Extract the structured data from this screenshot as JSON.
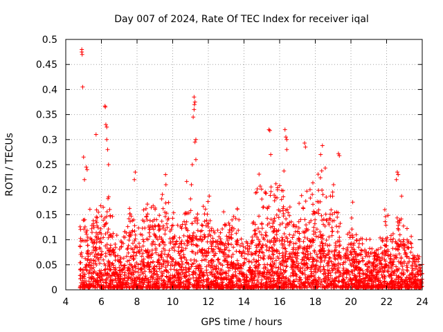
{
  "chart_data": {
    "type": "scatter",
    "title": "Day 007 of 2024, Rate Of TEC Index for receiver iqal",
    "xlabel": "GPS time / hours",
    "ylabel": "ROTI / TECUs",
    "xlim": [
      4,
      24
    ],
    "ylim": [
      0,
      0.5
    ],
    "xticks": [
      4,
      6,
      8,
      10,
      12,
      14,
      16,
      18,
      20,
      22,
      24
    ],
    "xtick_labels": [
      "4",
      "6",
      "8",
      "10",
      "12",
      "14",
      "16",
      "18",
      "20",
      "22",
      "24"
    ],
    "yticks": [
      0,
      0.05,
      0.1,
      0.15,
      0.2,
      0.25,
      0.3,
      0.35,
      0.4,
      0.45,
      0.5
    ],
    "ytick_labels": [
      "0",
      "0.05",
      "0.1",
      "0.15",
      "0.2",
      "0.25",
      "0.3",
      "0.35",
      "0.4",
      "0.45",
      "0.5"
    ],
    "grid": true,
    "marker": "+",
    "color": "#ff0000",
    "notable_points": [
      {
        "x": 4.9,
        "y": 0.48
      },
      {
        "x": 4.9,
        "y": 0.475
      },
      {
        "x": 4.92,
        "y": 0.47
      },
      {
        "x": 4.95,
        "y": 0.405
      },
      {
        "x": 5.0,
        "y": 0.265
      },
      {
        "x": 5.05,
        "y": 0.22
      },
      {
        "x": 5.15,
        "y": 0.245
      },
      {
        "x": 5.2,
        "y": 0.24
      },
      {
        "x": 5.7,
        "y": 0.31
      },
      {
        "x": 6.2,
        "y": 0.367
      },
      {
        "x": 6.22,
        "y": 0.365
      },
      {
        "x": 6.25,
        "y": 0.33
      },
      {
        "x": 6.3,
        "y": 0.325
      },
      {
        "x": 6.3,
        "y": 0.3
      },
      {
        "x": 6.35,
        "y": 0.28
      },
      {
        "x": 6.4,
        "y": 0.25
      },
      {
        "x": 7.9,
        "y": 0.235
      },
      {
        "x": 7.85,
        "y": 0.22
      },
      {
        "x": 9.6,
        "y": 0.23
      },
      {
        "x": 9.62,
        "y": 0.21
      },
      {
        "x": 11.2,
        "y": 0.385
      },
      {
        "x": 11.25,
        "y": 0.375
      },
      {
        "x": 11.22,
        "y": 0.37
      },
      {
        "x": 11.2,
        "y": 0.36
      },
      {
        "x": 11.15,
        "y": 0.345
      },
      {
        "x": 11.3,
        "y": 0.3
      },
      {
        "x": 11.25,
        "y": 0.295
      },
      {
        "x": 11.3,
        "y": 0.26
      },
      {
        "x": 11.1,
        "y": 0.25
      },
      {
        "x": 11.05,
        "y": 0.21
      },
      {
        "x": 15.4,
        "y": 0.32
      },
      {
        "x": 15.45,
        "y": 0.318
      },
      {
        "x": 15.5,
        "y": 0.27
      },
      {
        "x": 16.3,
        "y": 0.32
      },
      {
        "x": 16.35,
        "y": 0.305
      },
      {
        "x": 16.4,
        "y": 0.3
      },
      {
        "x": 16.4,
        "y": 0.28
      },
      {
        "x": 17.4,
        "y": 0.293
      },
      {
        "x": 17.45,
        "y": 0.285
      },
      {
        "x": 18.4,
        "y": 0.288
      },
      {
        "x": 18.3,
        "y": 0.27
      },
      {
        "x": 19.3,
        "y": 0.272
      },
      {
        "x": 19.35,
        "y": 0.268
      },
      {
        "x": 22.6,
        "y": 0.235
      },
      {
        "x": 22.65,
        "y": 0.23
      },
      {
        "x": 22.55,
        "y": 0.22
      },
      {
        "x": 21.9,
        "y": 0.16
      },
      {
        "x": 20.1,
        "y": 0.175
      }
    ],
    "density_profile": [
      {
        "x": 4.8,
        "max": 0.14
      },
      {
        "x": 5.2,
        "max": 0.15
      },
      {
        "x": 5.6,
        "max": 0.18
      },
      {
        "x": 6.0,
        "max": 0.21
      },
      {
        "x": 6.4,
        "max": 0.22
      },
      {
        "x": 6.8,
        "max": 0.1
      },
      {
        "x": 7.2,
        "max": 0.12
      },
      {
        "x": 7.6,
        "max": 0.18
      },
      {
        "x": 8.0,
        "max": 0.12
      },
      {
        "x": 8.4,
        "max": 0.17
      },
      {
        "x": 8.8,
        "max": 0.2
      },
      {
        "x": 9.2,
        "max": 0.18
      },
      {
        "x": 9.6,
        "max": 0.2
      },
      {
        "x": 10.0,
        "max": 0.15
      },
      {
        "x": 10.4,
        "max": 0.17
      },
      {
        "x": 10.8,
        "max": 0.21
      },
      {
        "x": 11.2,
        "max": 0.19
      },
      {
        "x": 11.6,
        "max": 0.17
      },
      {
        "x": 12.0,
        "max": 0.21
      },
      {
        "x": 12.4,
        "max": 0.13
      },
      {
        "x": 12.8,
        "max": 0.18
      },
      {
        "x": 13.2,
        "max": 0.15
      },
      {
        "x": 13.6,
        "max": 0.17
      },
      {
        "x": 14.0,
        "max": 0.1
      },
      {
        "x": 14.4,
        "max": 0.12
      },
      {
        "x": 14.8,
        "max": 0.24
      },
      {
        "x": 15.2,
        "max": 0.2
      },
      {
        "x": 15.6,
        "max": 0.23
      },
      {
        "x": 16.0,
        "max": 0.24
      },
      {
        "x": 16.4,
        "max": 0.22
      },
      {
        "x": 16.8,
        "max": 0.14
      },
      {
        "x": 17.2,
        "max": 0.19
      },
      {
        "x": 17.6,
        "max": 0.22
      },
      {
        "x": 18.0,
        "max": 0.24
      },
      {
        "x": 18.4,
        "max": 0.25
      },
      {
        "x": 18.8,
        "max": 0.22
      },
      {
        "x": 19.2,
        "max": 0.2
      },
      {
        "x": 19.6,
        "max": 0.12
      },
      {
        "x": 20.0,
        "max": 0.16
      },
      {
        "x": 20.4,
        "max": 0.1
      },
      {
        "x": 20.8,
        "max": 0.12
      },
      {
        "x": 21.2,
        "max": 0.1
      },
      {
        "x": 21.6,
        "max": 0.1
      },
      {
        "x": 22.0,
        "max": 0.15
      },
      {
        "x": 22.4,
        "max": 0.13
      },
      {
        "x": 22.8,
        "max": 0.2
      },
      {
        "x": 23.2,
        "max": 0.12
      },
      {
        "x": 23.6,
        "max": 0.11
      },
      {
        "x": 24.0,
        "max": 0.05
      }
    ]
  }
}
